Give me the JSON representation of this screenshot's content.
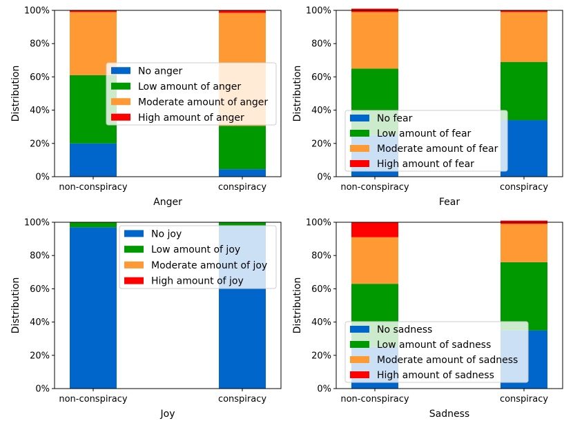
{
  "chart_data": [
    {
      "type": "bar",
      "stacked": true,
      "xlabel": "Anger",
      "ylabel": "Distribution",
      "ylim": [
        0,
        1
      ],
      "yticks": [
        "0%",
        "20%",
        "40%",
        "60%",
        "80%",
        "100%"
      ],
      "categories": [
        "non-conspiracy",
        "conspiracy"
      ],
      "legend_position": "center",
      "series": [
        {
          "name": "No anger",
          "color": "#0066cc",
          "values": [
            0.2,
            0.045
          ]
        },
        {
          "name": "Low amount of anger",
          "color": "#009900",
          "values": [
            0.41,
            0.26
          ]
        },
        {
          "name": "Moderate amount of anger",
          "color": "#ff9933",
          "values": [
            0.38,
            0.68
          ]
        },
        {
          "name": "High amount of anger",
          "color": "#ff0000",
          "values": [
            0.01,
            0.015
          ]
        }
      ]
    },
    {
      "type": "bar",
      "stacked": true,
      "xlabel": "Fear",
      "ylabel": "Distribution",
      "ylim": [
        0,
        1
      ],
      "yticks": [
        "0%",
        "20%",
        "40%",
        "60%",
        "80%",
        "100%"
      ],
      "categories": [
        "non-conspiracy",
        "conspiracy"
      ],
      "legend_position": "lower left",
      "series": [
        {
          "name": "No fear",
          "color": "#0066cc",
          "values": [
            0.25,
            0.34
          ]
        },
        {
          "name": "Low amount of fear",
          "color": "#009900",
          "values": [
            0.4,
            0.35
          ]
        },
        {
          "name": "Moderate amount of fear",
          "color": "#ff9933",
          "values": [
            0.34,
            0.3
          ]
        },
        {
          "name": "High amount of fear",
          "color": "#ff0000",
          "values": [
            0.02,
            0.01
          ]
        }
      ]
    },
    {
      "type": "bar",
      "stacked": true,
      "xlabel": "Joy",
      "ylabel": "Distribution",
      "ylim": [
        0,
        1
      ],
      "yticks": [
        "0%",
        "20%",
        "40%",
        "60%",
        "80%",
        "100%"
      ],
      "categories": [
        "non-conspiracy",
        "conspiracy"
      ],
      "legend_position": "upper center",
      "series": [
        {
          "name": "No joy",
          "color": "#0066cc",
          "values": [
            0.97,
            0.98
          ]
        },
        {
          "name": "Low amount of joy",
          "color": "#009900",
          "values": [
            0.03,
            0.02
          ]
        },
        {
          "name": "Moderate amount of joy",
          "color": "#ff9933",
          "values": [
            0.0,
            0.0
          ]
        },
        {
          "name": "High amount of joy",
          "color": "#ff0000",
          "values": [
            0.0,
            0.0
          ]
        }
      ]
    },
    {
      "type": "bar",
      "stacked": true,
      "xlabel": "Sadness",
      "ylabel": "Distribution",
      "ylim": [
        0,
        1
      ],
      "yticks": [
        "0%",
        "20%",
        "40%",
        "60%",
        "80%",
        "100%"
      ],
      "categories": [
        "non-conspiracy",
        "conspiracy"
      ],
      "legend_position": "lower left",
      "series": [
        {
          "name": "No sadness",
          "color": "#0066cc",
          "values": [
            0.25,
            0.35
          ]
        },
        {
          "name": "Low amount of sadness",
          "color": "#009900",
          "values": [
            0.38,
            0.41
          ]
        },
        {
          "name": "Moderate amount of sadness",
          "color": "#ff9933",
          "values": [
            0.28,
            0.23
          ]
        },
        {
          "name": "High amount of sadness",
          "color": "#ff0000",
          "values": [
            0.09,
            0.02
          ]
        }
      ]
    }
  ]
}
